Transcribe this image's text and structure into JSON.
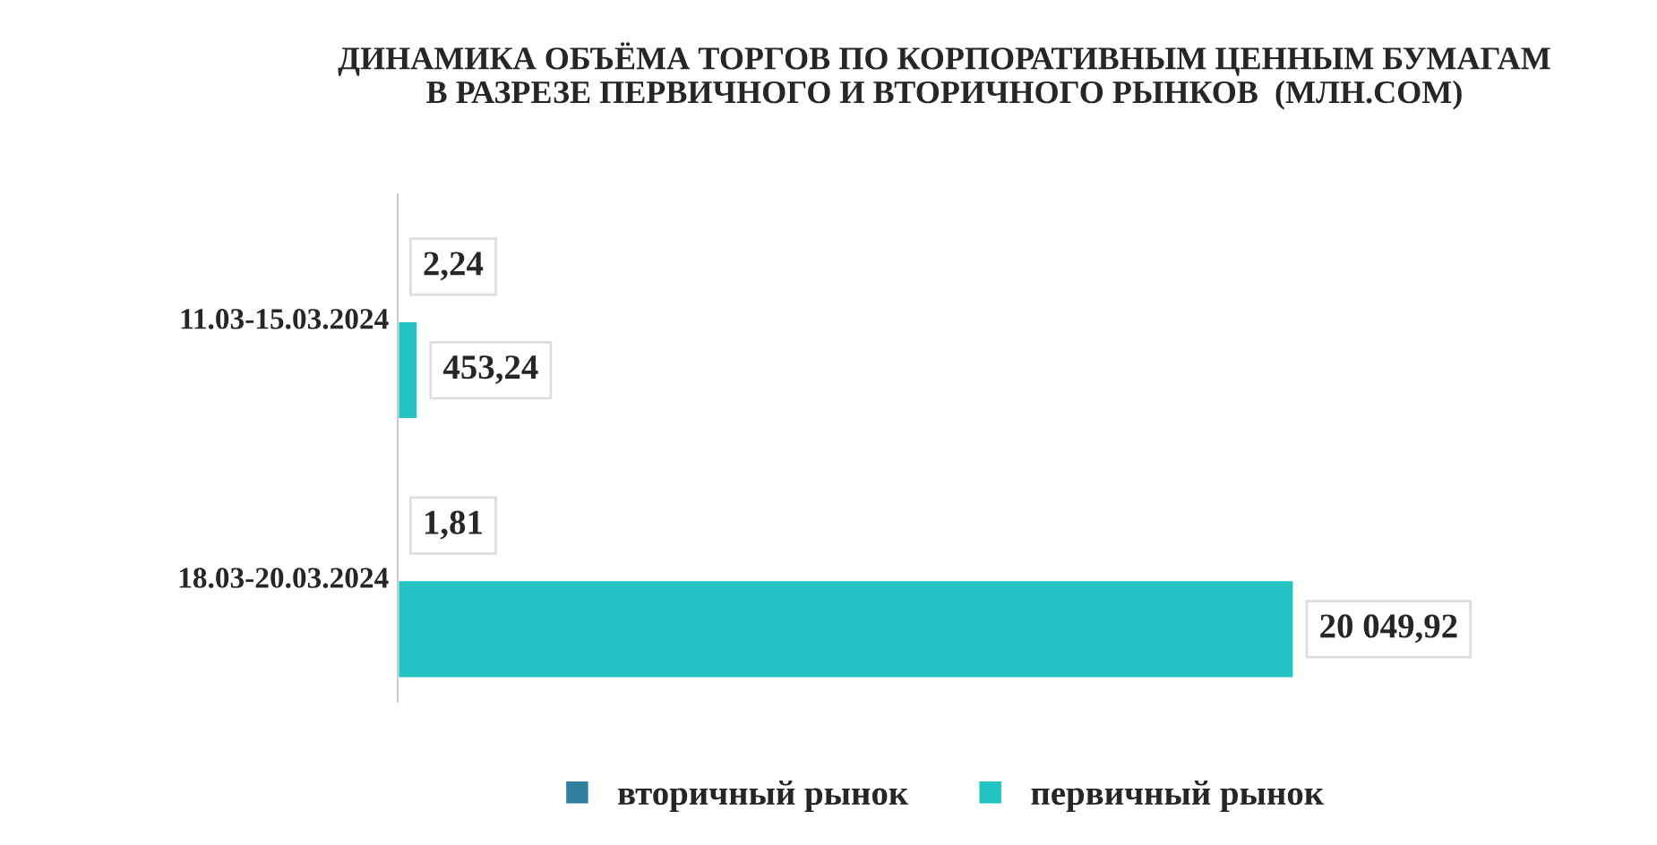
{
  "chart_data": {
    "type": "bar",
    "orientation": "horizontal",
    "title": "ДИНАМИКА ОБЪЁМА ТОРГОВ ПО КОРПОРАТИВНЫМ ЦЕННЫМ БУМАГАМ\nВ РАЗРЕЗЕ ПЕРВИЧНОГО И ВТОРИЧНОГО РЫНКОВ  (МЛН.СОМ)",
    "categories": [
      "11.03-15.03.2024",
      "18.03-20.03.2024"
    ],
    "series": [
      {
        "name": "вторичный рынок",
        "color": "#2f7f9e",
        "values": [
          2.24,
          1.81
        ],
        "value_labels": [
          "2,24",
          "1,81"
        ]
      },
      {
        "name": "первичный рынок",
        "color": "#22c4c4",
        "values": [
          453.24,
          20049.92
        ],
        "value_labels": [
          "453,24",
          "20 049,92"
        ]
      }
    ],
    "legend": "bottom",
    "grid": false
  }
}
